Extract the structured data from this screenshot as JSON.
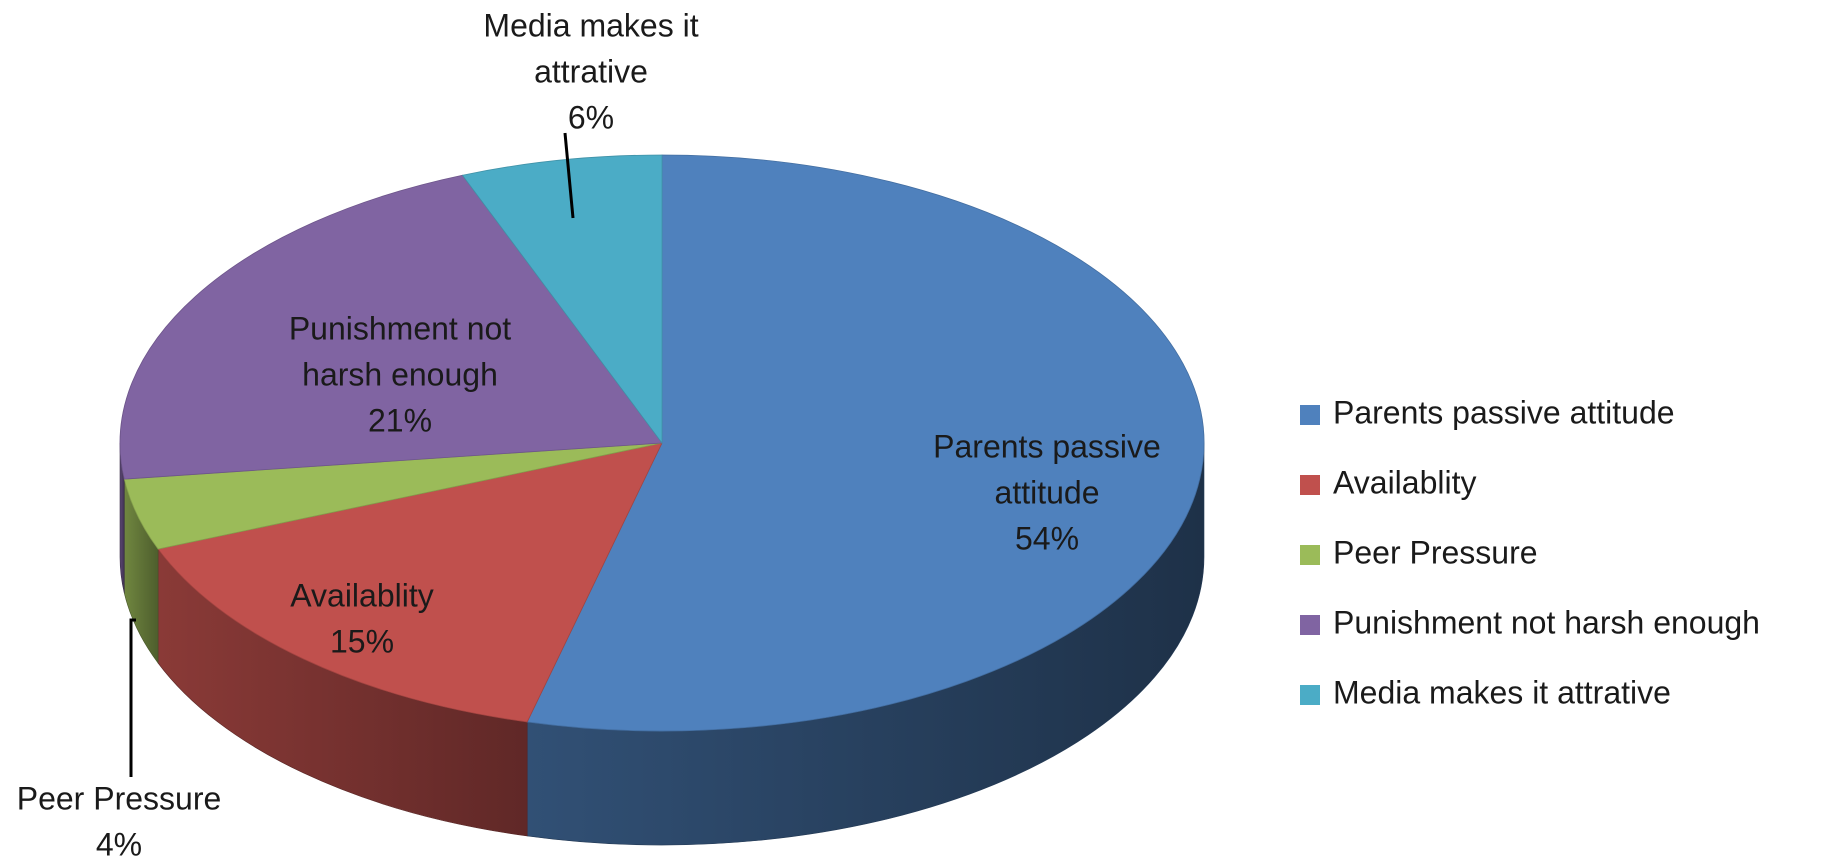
{
  "chart_data": {
    "type": "pie",
    "style": "3d",
    "categories": [
      "Parents passive attitude",
      "Availablity",
      "Peer Pressure",
      "Punishment not harsh enough",
      "Media makes it attrative"
    ],
    "values": [
      54,
      15,
      4,
      21,
      6
    ],
    "colors": [
      "#4f81bd",
      "#c0504d",
      "#9bbb59",
      "#8064a2",
      "#4bacc6"
    ],
    "data_labels": [
      {
        "lines": [
          "Parents passive",
          "attitude"
        ],
        "pct": "54%"
      },
      {
        "lines": [
          "Availablity"
        ],
        "pct": "15%"
      },
      {
        "lines": [
          "Peer Pressure"
        ],
        "pct": "4%"
      },
      {
        "lines": [
          "Punishment not",
          "harsh enough"
        ],
        "pct": "21%"
      },
      {
        "lines": [
          "Media makes it",
          "attrative"
        ],
        "pct": "6%"
      }
    ],
    "legend": {
      "position": "right",
      "entries": [
        "Parents passive attitude",
        "Availablity",
        "Peer Pressure",
        "Punishment not harsh enough",
        "Media makes it attrative"
      ]
    }
  }
}
